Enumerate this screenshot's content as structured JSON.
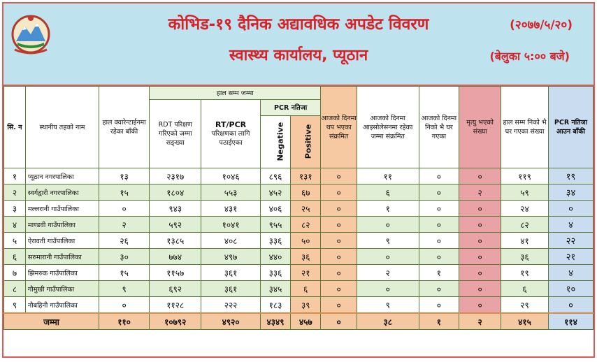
{
  "header": {
    "title": "कोभिड-१९ दैनिक अद्यावधिक अपडेट विवरण",
    "subtitle": "स्वास्थ्य कार्यालय, प्यूठान",
    "date": "(२०७७/५/२०)",
    "time": "(बेलुका ५:०० बजे)"
  },
  "columns": {
    "sn": "सि. न",
    "local_level": "स्थानीय तहको नाम",
    "quarantine": "हाल क्वारेन्टाईनमा रहेका बाँकी",
    "group_total": "हाल सम्म जम्मा",
    "rdt": "RDT परिक्षण गरिएको जम्मा सङ्ख्या",
    "rtpcr_title": "RT/PCR",
    "rtpcr_sub": "परिक्षणका लागि पठाईएका",
    "pcr_result": "PCR नतिजा",
    "negative": "Negative",
    "positive": "Positive",
    "today_infected": "आजको दिनमा थप भएका संक्रमित",
    "isolation": "आजको दिनमा आइसोलेसनमा रहेका जम्मा संक्रमित",
    "recovered_today": "आजको दिनमा निको भै घर गएका",
    "deaths": "मृत्यु भएको संख्या",
    "recovered_total": "हाल सम्म निको भै घर गएका संख्या",
    "pcr_pending": "PCR नतिजा आउन बाँकी"
  },
  "rows": [
    {
      "sn": "१",
      "name": "प्यूठान नगरपालिका",
      "q": "१३",
      "rdt": "२३१७",
      "pcr": "१०४६",
      "neg": "८९६",
      "pos": "१३१",
      "today": "०",
      "iso": "११",
      "rec_today": "०",
      "death": "०",
      "rec_total": "११९",
      "pending": "१९"
    },
    {
      "sn": "२",
      "name": "स्वर्गद्वारी नगरपालिका",
      "q": "१५",
      "rdt": "१८०४",
      "pcr": "५५३",
      "neg": "४५२",
      "pos": "६७",
      "today": "०",
      "iso": "६",
      "rec_today": "०",
      "death": "२",
      "rec_total": "५९",
      "pending": "३४"
    },
    {
      "sn": "३",
      "name": "मल्लरानी गाउँपालिका",
      "q": "०",
      "rdt": "९४३",
      "pcr": "४३१",
      "neg": "४०६",
      "pos": "२५",
      "today": "०",
      "iso": "१",
      "rec_today": "०",
      "death": "०",
      "rec_total": "२४",
      "pending": "०"
    },
    {
      "sn": "४",
      "name": "माण्डवी गाउँपालिका",
      "q": "२",
      "rdt": "५९२",
      "pcr": "१०४१",
      "neg": "९५५",
      "pos": "८२",
      "today": "०",
      "iso": "०",
      "rec_today": "०",
      "death": "०",
      "rec_total": "८२",
      "pending": "४"
    },
    {
      "sn": "५",
      "name": "ऐरावती गाउँपालिका",
      "q": "२६",
      "rdt": "१३८५",
      "pcr": "४०८",
      "neg": "३३६",
      "pos": "५०",
      "today": "०",
      "iso": "९",
      "rec_today": "०",
      "death": "०",
      "rec_total": "४१",
      "pending": "२२"
    },
    {
      "sn": "६",
      "name": "सरुमारानी गाउँपालिका",
      "q": "३०",
      "rdt": "७७४",
      "pcr": "४९७",
      "neg": "४४०",
      "pos": "३६",
      "today": "०",
      "iso": "०",
      "rec_today": "०",
      "death": "०",
      "rec_total": "३६",
      "pending": "२१"
    },
    {
      "sn": "७",
      "name": "झिमरुक गाउँपालिका",
      "q": "१५",
      "rdt": "११५७",
      "pcr": "३६१",
      "neg": "३३६",
      "pos": "२१",
      "today": "०",
      "iso": "२",
      "rec_today": "१",
      "death": "०",
      "rec_total": "१९",
      "pending": "४"
    },
    {
      "sn": "८",
      "name": "गौमुखी गाउँपालिका",
      "q": "९",
      "rdt": "६९२",
      "pcr": "३६१",
      "neg": "३४५",
      "pos": "६",
      "today": "०",
      "iso": "०",
      "rec_today": "०",
      "death": "०",
      "rec_total": "६",
      "pending": "१०"
    },
    {
      "sn": "९",
      "name": "नौबहिनी गाउँपालिका",
      "q": "०",
      "rdt": "११२८",
      "pcr": "२२२",
      "neg": "१८३",
      "pos": "३९",
      "today": "०",
      "iso": "९",
      "rec_today": "०",
      "death": "०",
      "rec_total": "२९",
      "pending": "०"
    }
  ],
  "total": {
    "label": "जम्मा",
    "q": "११०",
    "rdt": "१०७९२",
    "pcr": "४९२०",
    "neg": "४३४९",
    "pos": "४५७",
    "today": "०",
    "iso": "३८",
    "rec_today": "१",
    "death": "२",
    "rec_total": "४१५",
    "pending": "११४"
  },
  "colors": {
    "header_bg": "#bfe3ee",
    "title_red": "#d6232a",
    "alt_row": "#e0eed3",
    "peach": "#f7c9a3",
    "pink": "#e9a3a6",
    "blue": "#c9dcf0"
  },
  "icons": {
    "emblem": "nepal-government-emblem-icon"
  }
}
